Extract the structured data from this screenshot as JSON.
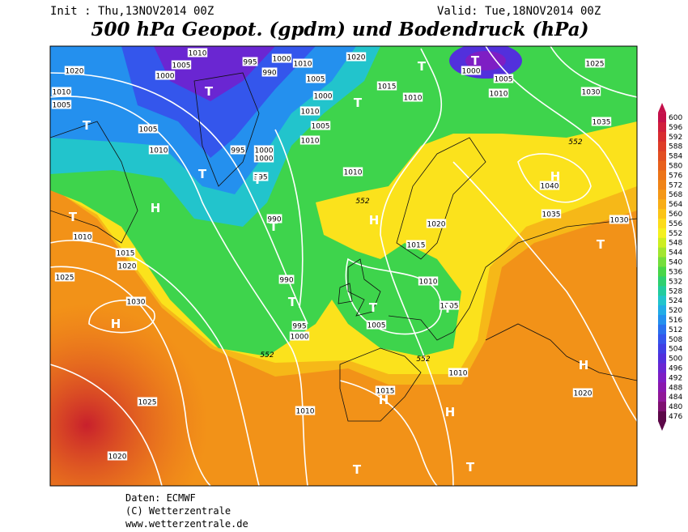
{
  "header": {
    "init": "Init : Thu,13NOV2014 00Z",
    "valid": "Valid: Tue,18NOV2014 00Z",
    "title": "500 hPa Geopot. (gpdm) und Bodendruck (hPa)"
  },
  "footer": {
    "source": "Daten: ECMWF",
    "copyright": "(C) Wetterzentrale",
    "url": "www.wetterzentrale.de"
  },
  "colorbar": {
    "levels": [
      600,
      596,
      592,
      588,
      584,
      580,
      576,
      572,
      568,
      564,
      560,
      556,
      552,
      548,
      544,
      540,
      536,
      532,
      528,
      524,
      520,
      516,
      512,
      508,
      504,
      500,
      496,
      492,
      488,
      484,
      480,
      476
    ],
    "colors": [
      "#c4104a",
      "#d01e3c",
      "#d82c30",
      "#de3c28",
      "#e24e22",
      "#e8601c",
      "#ec7418",
      "#f08418",
      "#f49818",
      "#f8ae18",
      "#fbc418",
      "#fcdc1c",
      "#f4f020",
      "#cdee22",
      "#a2e630",
      "#74de3c",
      "#48d648",
      "#2ed070",
      "#22cc9e",
      "#22c4cc",
      "#22ace6",
      "#2490ee",
      "#2a70ee",
      "#3456ec",
      "#4040e4",
      "#5230dc",
      "#6a26d2",
      "#7e1ec4",
      "#8a18ae",
      "#901898",
      "#7e1070",
      "#5c0848"
    ]
  },
  "isobar_labels": [
    "1010",
    "1005",
    "1000",
    "1020",
    "1010",
    "1005",
    "1000",
    "1010",
    "995",
    "990",
    "1020",
    "1005",
    "1000",
    "1015",
    "1010",
    "1010",
    "1005",
    "1010",
    "1005",
    "1010",
    "995",
    "1000",
    "1000",
    "995",
    "1010",
    "990",
    "990",
    "995",
    "1000",
    "1010",
    "1015",
    "1020",
    "1025",
    "1030",
    "1025",
    "1020",
    "1010",
    "1015",
    "1010",
    "1005",
    "1010",
    "1005",
    "1015",
    "1020",
    "1030",
    "1025",
    "1035",
    "1040",
    "1035",
    "1030",
    "1020",
    "1005",
    "1000",
    "1010"
  ],
  "contour_labels": [
    "552",
    "552",
    "552",
    "552"
  ],
  "pressure_centers": [
    "T",
    "T",
    "T",
    "T",
    "T",
    "T",
    "T",
    "H",
    "T",
    "H",
    "T",
    "H",
    "T",
    "H",
    "T",
    "T",
    "T",
    "H",
    "H",
    "H",
    "T",
    "T"
  ]
}
